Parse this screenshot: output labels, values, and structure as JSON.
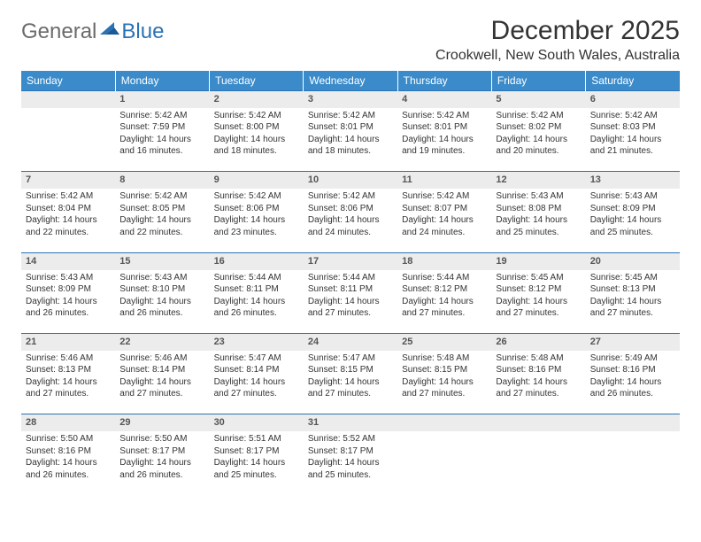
{
  "logo": {
    "word1": "General",
    "word2": "Blue"
  },
  "header": {
    "month_title": "December 2025",
    "location": "Crookwell, New South Wales, Australia"
  },
  "colors": {
    "header_bg": "#3b8bca",
    "header_text": "#ffffff",
    "daynum_bg": "#ececec",
    "row_divider": "#2a72b5",
    "body_text": "#333333",
    "logo_grey": "#6b6b6b",
    "logo_blue": "#2a72b5"
  },
  "weekdays": [
    "Sunday",
    "Monday",
    "Tuesday",
    "Wednesday",
    "Thursday",
    "Friday",
    "Saturday"
  ],
  "weeks": [
    {
      "nums": [
        "",
        "1",
        "2",
        "3",
        "4",
        "5",
        "6"
      ],
      "cells": [
        [],
        [
          "Sunrise: 5:42 AM",
          "Sunset: 7:59 PM",
          "Daylight: 14 hours",
          "and 16 minutes."
        ],
        [
          "Sunrise: 5:42 AM",
          "Sunset: 8:00 PM",
          "Daylight: 14 hours",
          "and 18 minutes."
        ],
        [
          "Sunrise: 5:42 AM",
          "Sunset: 8:01 PM",
          "Daylight: 14 hours",
          "and 18 minutes."
        ],
        [
          "Sunrise: 5:42 AM",
          "Sunset: 8:01 PM",
          "Daylight: 14 hours",
          "and 19 minutes."
        ],
        [
          "Sunrise: 5:42 AM",
          "Sunset: 8:02 PM",
          "Daylight: 14 hours",
          "and 20 minutes."
        ],
        [
          "Sunrise: 5:42 AM",
          "Sunset: 8:03 PM",
          "Daylight: 14 hours",
          "and 21 minutes."
        ]
      ]
    },
    {
      "nums": [
        "7",
        "8",
        "9",
        "10",
        "11",
        "12",
        "13"
      ],
      "cells": [
        [
          "Sunrise: 5:42 AM",
          "Sunset: 8:04 PM",
          "Daylight: 14 hours",
          "and 22 minutes."
        ],
        [
          "Sunrise: 5:42 AM",
          "Sunset: 8:05 PM",
          "Daylight: 14 hours",
          "and 22 minutes."
        ],
        [
          "Sunrise: 5:42 AM",
          "Sunset: 8:06 PM",
          "Daylight: 14 hours",
          "and 23 minutes."
        ],
        [
          "Sunrise: 5:42 AM",
          "Sunset: 8:06 PM",
          "Daylight: 14 hours",
          "and 24 minutes."
        ],
        [
          "Sunrise: 5:42 AM",
          "Sunset: 8:07 PM",
          "Daylight: 14 hours",
          "and 24 minutes."
        ],
        [
          "Sunrise: 5:43 AM",
          "Sunset: 8:08 PM",
          "Daylight: 14 hours",
          "and 25 minutes."
        ],
        [
          "Sunrise: 5:43 AM",
          "Sunset: 8:09 PM",
          "Daylight: 14 hours",
          "and 25 minutes."
        ]
      ]
    },
    {
      "nums": [
        "14",
        "15",
        "16",
        "17",
        "18",
        "19",
        "20"
      ],
      "cells": [
        [
          "Sunrise: 5:43 AM",
          "Sunset: 8:09 PM",
          "Daylight: 14 hours",
          "and 26 minutes."
        ],
        [
          "Sunrise: 5:43 AM",
          "Sunset: 8:10 PM",
          "Daylight: 14 hours",
          "and 26 minutes."
        ],
        [
          "Sunrise: 5:44 AM",
          "Sunset: 8:11 PM",
          "Daylight: 14 hours",
          "and 26 minutes."
        ],
        [
          "Sunrise: 5:44 AM",
          "Sunset: 8:11 PM",
          "Daylight: 14 hours",
          "and 27 minutes."
        ],
        [
          "Sunrise: 5:44 AM",
          "Sunset: 8:12 PM",
          "Daylight: 14 hours",
          "and 27 minutes."
        ],
        [
          "Sunrise: 5:45 AM",
          "Sunset: 8:12 PM",
          "Daylight: 14 hours",
          "and 27 minutes."
        ],
        [
          "Sunrise: 5:45 AM",
          "Sunset: 8:13 PM",
          "Daylight: 14 hours",
          "and 27 minutes."
        ]
      ]
    },
    {
      "nums": [
        "21",
        "22",
        "23",
        "24",
        "25",
        "26",
        "27"
      ],
      "cells": [
        [
          "Sunrise: 5:46 AM",
          "Sunset: 8:13 PM",
          "Daylight: 14 hours",
          "and 27 minutes."
        ],
        [
          "Sunrise: 5:46 AM",
          "Sunset: 8:14 PM",
          "Daylight: 14 hours",
          "and 27 minutes."
        ],
        [
          "Sunrise: 5:47 AM",
          "Sunset: 8:14 PM",
          "Daylight: 14 hours",
          "and 27 minutes."
        ],
        [
          "Sunrise: 5:47 AM",
          "Sunset: 8:15 PM",
          "Daylight: 14 hours",
          "and 27 minutes."
        ],
        [
          "Sunrise: 5:48 AM",
          "Sunset: 8:15 PM",
          "Daylight: 14 hours",
          "and 27 minutes."
        ],
        [
          "Sunrise: 5:48 AM",
          "Sunset: 8:16 PM",
          "Daylight: 14 hours",
          "and 27 minutes."
        ],
        [
          "Sunrise: 5:49 AM",
          "Sunset: 8:16 PM",
          "Daylight: 14 hours",
          "and 26 minutes."
        ]
      ]
    },
    {
      "nums": [
        "28",
        "29",
        "30",
        "31",
        "",
        "",
        ""
      ],
      "cells": [
        [
          "Sunrise: 5:50 AM",
          "Sunset: 8:16 PM",
          "Daylight: 14 hours",
          "and 26 minutes."
        ],
        [
          "Sunrise: 5:50 AM",
          "Sunset: 8:17 PM",
          "Daylight: 14 hours",
          "and 26 minutes."
        ],
        [
          "Sunrise: 5:51 AM",
          "Sunset: 8:17 PM",
          "Daylight: 14 hours",
          "and 25 minutes."
        ],
        [
          "Sunrise: 5:52 AM",
          "Sunset: 8:17 PM",
          "Daylight: 14 hours",
          "and 25 minutes."
        ],
        [],
        [],
        []
      ]
    }
  ]
}
